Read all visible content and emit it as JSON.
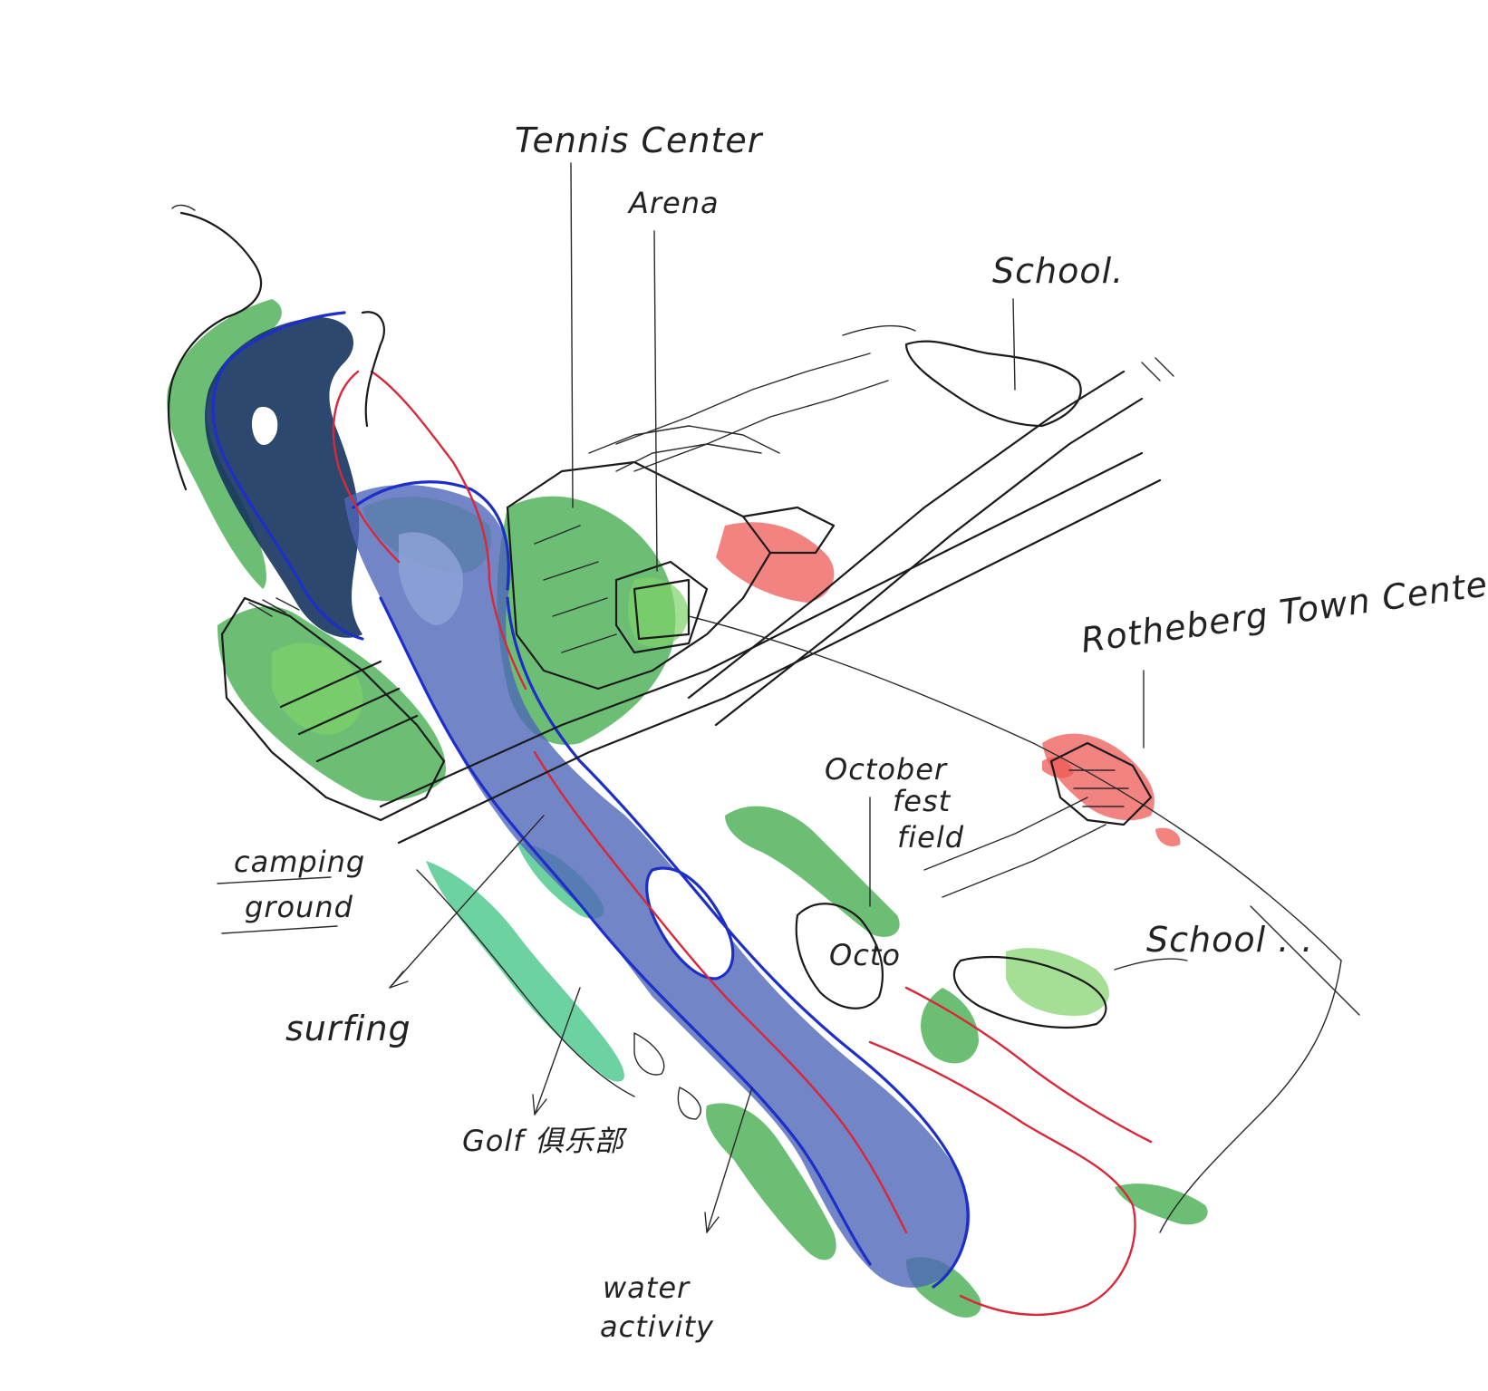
{
  "map": {
    "labels": {
      "tennis_center": "Tennis Center",
      "arena": "Arena",
      "school_north": "School.",
      "rotheberg_town_center": "Rotheberg Town Center",
      "october_fest_field_line1": "October",
      "october_fest_field_line2": "fest",
      "october_fest_field_line3": "field",
      "october_small": "Octo",
      "school_east": "School . .",
      "camping_ground_line1": "camping",
      "camping_ground_line2": "ground",
      "surfing": "surfing",
      "golf_club": "Golf 俱乐部",
      "water_activity_line1": "water",
      "water_activity_line2": "activity"
    },
    "colors": {
      "water_deep": "#15345e",
      "water": "#4f66b8",
      "water_light": "#8fa4d8",
      "green_space": "#3aa845",
      "green_light": "#7fd16a",
      "teal_green": "#2fbf7a",
      "town_center": "#ef5a55",
      "outline_red": "#d8283a",
      "outline_blue": "#1d2fc8",
      "ink": "#1b1b1b"
    }
  }
}
